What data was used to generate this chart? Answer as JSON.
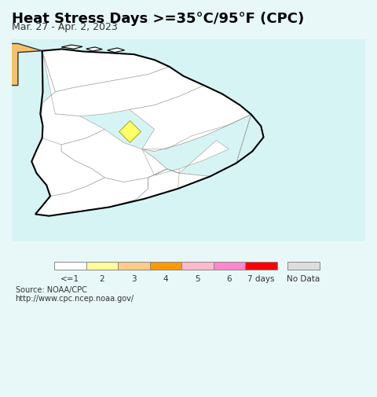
{
  "title": "Heat Stress Days >=35°C/95°F (CPC)",
  "subtitle": "Mar. 27 - Apr. 2, 2023",
  "background_color": "#d6f4f4",
  "map_background": "#d6f4f4",
  "sri_lanka_fill": "#ffffff",
  "sri_lanka_edge": "#000000",
  "province_edge": "#aaaaaa",
  "india_fill": "#f5c26b",
  "india_edge": "#333333",
  "marker_lon": 80.4,
  "marker_lat": 8.0,
  "marker_color": "#ffff66",
  "marker_size": 200,
  "legend_colors": [
    "#ffffff",
    "#ffff99",
    "#ffcc88",
    "#ff9900",
    "#ffbbcc",
    "#ff88cc",
    "#ff0000",
    "#dddddd"
  ],
  "legend_labels": [
    "<=1",
    "2",
    "3",
    "4",
    "5",
    "6",
    "7 days",
    "No Data"
  ],
  "source_text": "Source: NOAA/CPC\nhttp://www.cpc.ncep.noaa.gov/",
  "xlim": [
    79.5,
    82.1
  ],
  "ylim": [
    5.8,
    10.0
  ],
  "title_fontsize": 13,
  "subtitle_fontsize": 9
}
